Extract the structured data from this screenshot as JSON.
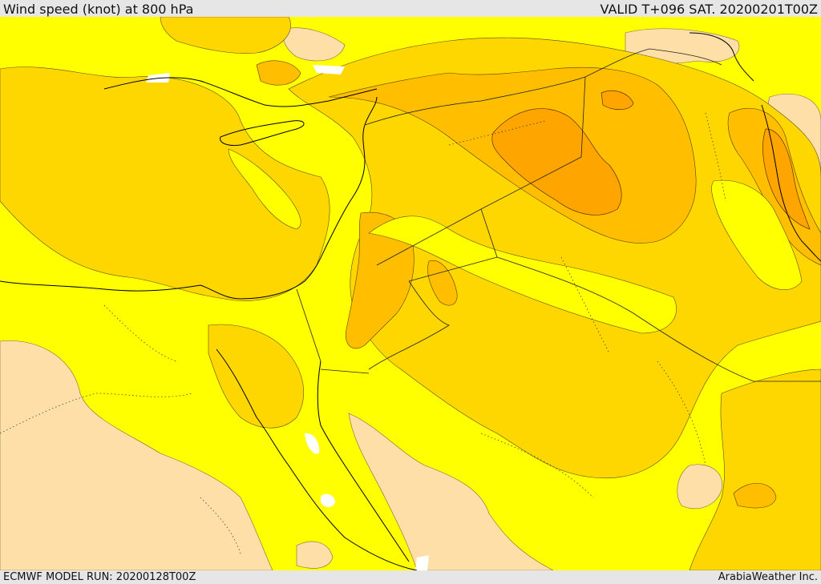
{
  "header": {
    "title": "Wind speed (knot) at 800 hPa",
    "valid_time": "VALID T+096 SAT. 20200201T00Z"
  },
  "footer": {
    "model_run": "ECMWF MODEL RUN: 20200128T00Z",
    "credit": "ArabiaWeather Inc."
  },
  "colors": {
    "light_yellow": "#ffff00",
    "gold": "#ffd700",
    "amber": "#ffbf00",
    "orange": "#ffa500",
    "tan": "#ffdfa8",
    "sea_ice_white": "#ffffff",
    "boundary": "#000000"
  }
}
